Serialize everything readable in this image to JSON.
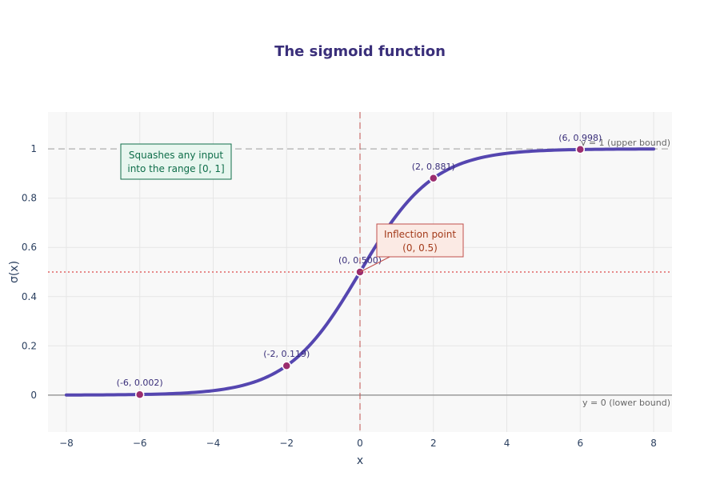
{
  "chart_data": {
    "type": "line",
    "title": "The sigmoid function",
    "xlabel": "x",
    "ylabel": "σ(x)",
    "xlim": [
      -8.5,
      8.5
    ],
    "ylim": [
      -0.15,
      1.15
    ],
    "grid": true,
    "x_ticks": [
      -8,
      -6,
      -4,
      -2,
      0,
      2,
      4,
      6,
      8
    ],
    "x_tick_labels": [
      "−8",
      "−6",
      "−4",
      "−2",
      "0",
      "2",
      "4",
      "6",
      "8"
    ],
    "y_ticks": [
      0,
      0.2,
      0.4,
      0.6,
      0.8,
      1
    ],
    "y_tick_labels": [
      "0",
      "0.2",
      "0.4",
      "0.6",
      "0.8",
      "1"
    ],
    "series": [
      {
        "function": "sigmoid",
        "x_range": [
          -8,
          8
        ],
        "color": "#5546b0",
        "points": [
          [
            -8,
            0.0003
          ],
          [
            -7,
            0.0009
          ],
          [
            -6,
            0.0025
          ],
          [
            -5,
            0.0067
          ],
          [
            -4,
            0.018
          ],
          [
            -3,
            0.0474
          ],
          [
            -2,
            0.1192
          ],
          [
            -1,
            0.2689
          ],
          [
            0,
            0.5
          ],
          [
            1,
            0.7311
          ],
          [
            2,
            0.8808
          ],
          [
            3,
            0.9526
          ],
          [
            4,
            0.982
          ],
          [
            5,
            0.9933
          ],
          [
            6,
            0.9975
          ],
          [
            7,
            0.9991
          ],
          [
            8,
            0.9997
          ]
        ]
      }
    ],
    "markers": [
      {
        "x": -6,
        "y": 0.002,
        "label": "(-6, 0.002)"
      },
      {
        "x": -2,
        "y": 0.119,
        "label": "(-2, 0.119)"
      },
      {
        "x": 0,
        "y": 0.5,
        "label": "(0, 0.500)"
      },
      {
        "x": 2,
        "y": 0.881,
        "label": "(2, 0.881)"
      },
      {
        "x": 6,
        "y": 0.998,
        "label": "(6, 0.998)"
      }
    ],
    "marker_color": "#9b2d6e",
    "reference_lines": [
      {
        "axis": "y",
        "value": 1,
        "label": "y = 1 (upper bound)",
        "style": "dashed",
        "color": "#bbbbbb"
      },
      {
        "axis": "y",
        "value": 0,
        "label": "y = 0 (lower bound)",
        "style": "solid",
        "color": "#9a9a9a"
      },
      {
        "axis": "y",
        "value": 0.5,
        "label": "",
        "style": "dotted",
        "color": "#e06666"
      },
      {
        "axis": "x",
        "value": 0,
        "label": "",
        "style": "dashed",
        "color": "#c0504d"
      }
    ],
    "annotations": [
      {
        "lines": [
          "Inflection point",
          "(0, 0.5)"
        ],
        "points_to": [
          0,
          0.5
        ],
        "text_color": "#a33a1a",
        "border_color": "#c0504d",
        "fill": "#fbeae4"
      },
      {
        "lines": [
          "Squashes any input",
          "into the range [0, 1]"
        ],
        "text_color": "#0f6e4a",
        "border_color": "#0f6e4a",
        "fill": "#e8f6ef"
      }
    ],
    "colors": {
      "title": "#3a2f7a",
      "axis_text": "#2a3f5f",
      "plot_bg": "#f8f8f8",
      "grid": "#e6e6e6"
    }
  }
}
